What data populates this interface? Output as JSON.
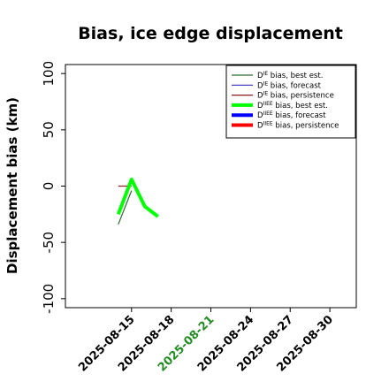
{
  "chart_data": {
    "type": "line",
    "title": "Bias, ice edge displacement",
    "xlabel": "",
    "ylabel": "Displacement bias (km)",
    "ylim": [
      -108,
      108
    ],
    "xlim": [
      "2025-08-10",
      "2025-09-01"
    ],
    "yticks": [
      100,
      50,
      0,
      -50,
      -100
    ],
    "xticks": [
      "2025-08-15",
      "2025-08-18",
      "2025-08-21",
      "2025-08-24",
      "2025-08-27",
      "2025-08-30"
    ],
    "highlighted_xtick": "2025-08-21",
    "highlight_color": "#228B22",
    "grid": false,
    "legend_position": "top-right",
    "series": [
      {
        "name": "D^IE bias, best est.",
        "color": "#2d6b2d",
        "width": 1.2,
        "points": [
          [
            "2025-08-14",
            -34
          ],
          [
            "2025-08-15",
            -4
          ]
        ]
      },
      {
        "name": "D^IE bias, forecast",
        "color": "#3333cc",
        "width": 1.2,
        "points": []
      },
      {
        "name": "D^IE bias, persistence",
        "color": "#8b1a1a",
        "width": 1.2,
        "points": [
          [
            "2025-08-14",
            0
          ],
          [
            "2025-08-15",
            0
          ]
        ]
      },
      {
        "name": "D^IIEE bias, best est.",
        "color": "#00ff00",
        "width": 4,
        "points": [
          [
            "2025-08-14",
            -25
          ],
          [
            "2025-08-15",
            6
          ],
          [
            "2025-08-16",
            -18
          ],
          [
            "2025-08-17",
            -27
          ]
        ]
      },
      {
        "name": "D^IIEE bias, forecast",
        "color": "#0000ff",
        "width": 4,
        "points": []
      },
      {
        "name": "D^IIEE bias, persistence",
        "color": "#ff0000",
        "width": 4,
        "points": []
      }
    ],
    "legend": [
      {
        "base": "D",
        "sup": "IE",
        "rest": " bias, best est."
      },
      {
        "base": "D",
        "sup": "IE",
        "rest": " bias, forecast"
      },
      {
        "base": "D",
        "sup": "IE",
        "rest": " bias, persistence"
      },
      {
        "base": "D",
        "sup": "IIEE",
        "rest": " bias, best est."
      },
      {
        "base": "D",
        "sup": "IIEE",
        "rest": " bias, forecast"
      },
      {
        "base": "D",
        "sup": "IIEE",
        "rest": " bias, persistence"
      }
    ]
  }
}
